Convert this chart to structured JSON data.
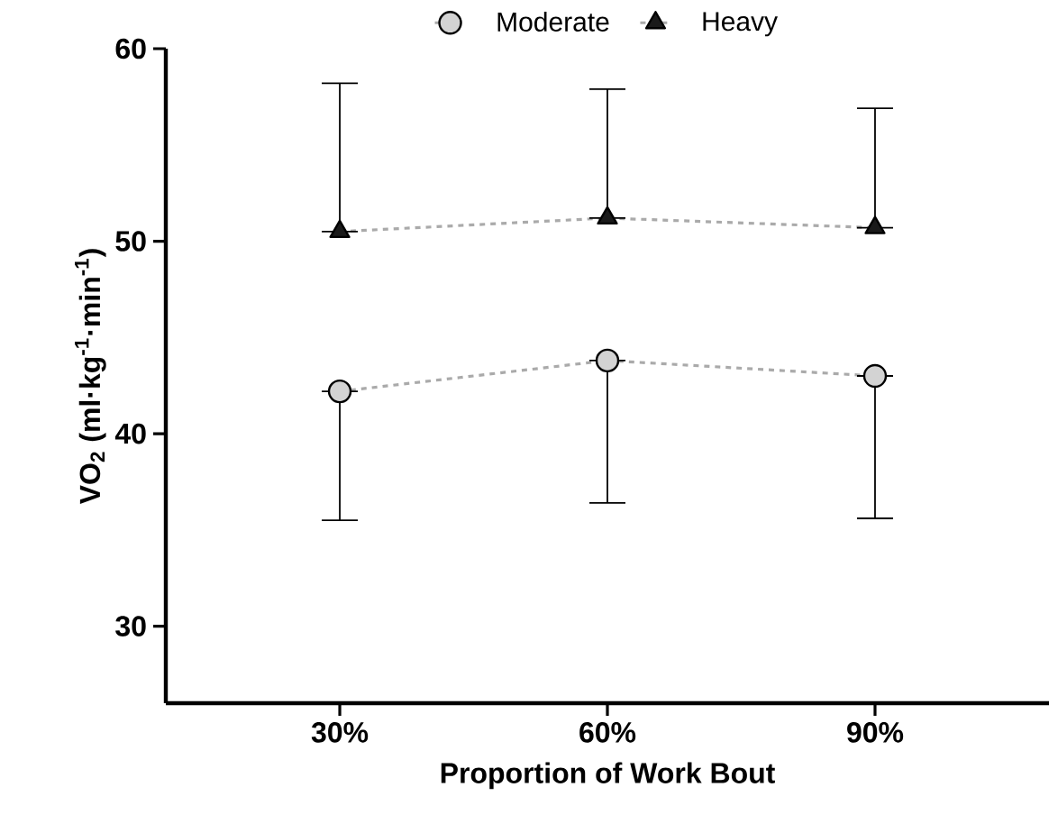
{
  "chart_data": {
    "type": "line",
    "xlabel": "Proportion of Work Bout",
    "ylabel": "VO$_{2}$ (ml·kg$^{-1}$·min$^{-1}$)",
    "categories": [
      "30%",
      "60%",
      "90%"
    ],
    "series": [
      {
        "name": "Moderate",
        "color": "#d3d3d3",
        "marker": "circle",
        "values": [
          42.2,
          43.8,
          43.0
        ],
        "errors": [
          [
            35.5,
            42.2
          ],
          [
            36.4,
            43.8
          ],
          [
            35.6,
            43.0
          ]
        ]
      },
      {
        "name": "Heavy",
        "color": "#1a1a1a",
        "marker": "triangle",
        "values": [
          50.5,
          51.2,
          50.7
        ],
        "errors": [
          [
            50.5,
            58.2
          ],
          [
            51.2,
            57.9
          ],
          [
            50.7,
            56.9
          ]
        ]
      }
    ],
    "ylim": [
      26,
      60
    ],
    "yticks": [
      30,
      40,
      50,
      60
    ],
    "grid": false,
    "legend": "top",
    "line_style": "dashed"
  }
}
